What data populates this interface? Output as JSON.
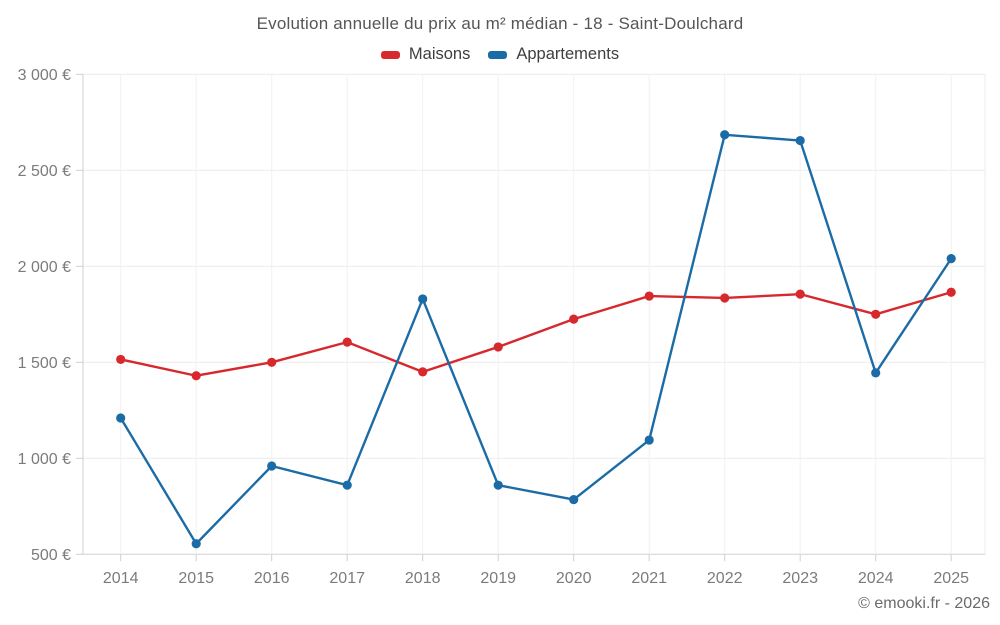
{
  "title": "Evolution annuelle du prix au m² médian - 18 - Saint-Doulchard",
  "footer": "© emooki.fr - 2026",
  "colors": {
    "maisons": "#d7282d",
    "appartements": "#1b6ca6",
    "grid_horizontal": "#ececec",
    "grid_vertical": "#f1f1f1",
    "axis_line": "#d2d2d2",
    "tick": "#cfcfcf",
    "axis_text": "#7b7b7b",
    "title_text": "#565656",
    "footer_text": "#6b6b6b"
  },
  "chart_data": {
    "type": "line",
    "title": "Evolution annuelle du prix au m² médian - 18 - Saint-Doulchard",
    "categories": [
      "2014",
      "2015",
      "2016",
      "2017",
      "2018",
      "2019",
      "2020",
      "2021",
      "2022",
      "2023",
      "2024",
      "2025"
    ],
    "series": [
      {
        "name": "Maisons",
        "color": "#d7282d",
        "values": [
          1515,
          1430,
          1500,
          1605,
          1450,
          1580,
          1725,
          1845,
          1835,
          1855,
          1750,
          1865
        ]
      },
      {
        "name": "Appartements",
        "color": "#1b6ca6",
        "values": [
          1210,
          555,
          960,
          860,
          1830,
          860,
          785,
          1095,
          2685,
          2655,
          1445,
          2040
        ]
      }
    ],
    "xlabel": "",
    "ylabel": "",
    "ylim": [
      500,
      3000
    ],
    "ytick_step": 500,
    "y_ticks": [
      500,
      1000,
      1500,
      2000,
      2500,
      3000
    ],
    "y_tick_suffix": " €",
    "grid": true,
    "legend_position": "top",
    "marker": "circle"
  }
}
